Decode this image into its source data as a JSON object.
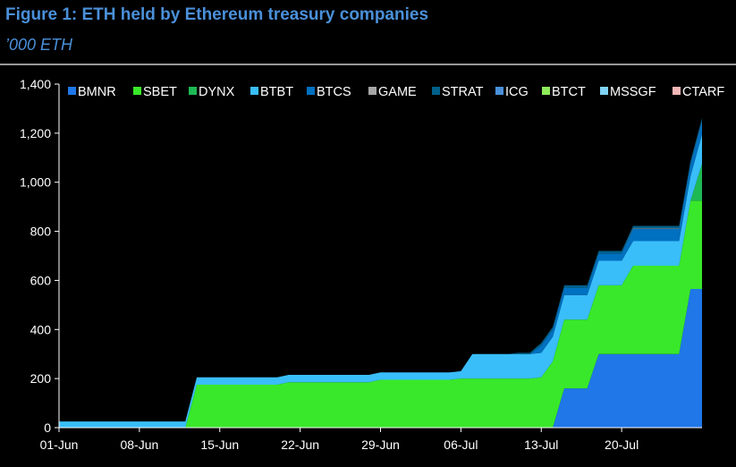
{
  "figure": {
    "title": "Figure 1: ETH held by Ethereum treasury companies",
    "subtitle": "’000 ETH"
  },
  "chart_data": {
    "type": "area",
    "stacked": true,
    "title": "Figure 1: ETH held by Ethereum treasury companies",
    "subtitle": "’000 ETH",
    "xlabel": "",
    "ylabel": "",
    "ylim": [
      0,
      1400
    ],
    "yticks": [
      0,
      200,
      400,
      600,
      800,
      1000,
      1200,
      1400
    ],
    "ytick_labels": [
      "0",
      "200",
      "400",
      "600",
      "800",
      "1,000",
      "1,200",
      "1,400"
    ],
    "xlim_days": [
      0,
      56
    ],
    "xticks": [
      {
        "day": 0,
        "label": "01-Jun"
      },
      {
        "day": 7,
        "label": "08-Jun"
      },
      {
        "day": 14,
        "label": "15-Jun"
      },
      {
        "day": 21,
        "label": "22-Jun"
      },
      {
        "day": 28,
        "label": "29-Jun"
      },
      {
        "day": 35,
        "label": "06-Jul"
      },
      {
        "day": 42,
        "label": "13-Jul"
      },
      {
        "day": 49,
        "label": "20-Jul"
      }
    ],
    "legend_position": "top",
    "grid": false,
    "x": [
      0,
      1,
      2,
      3,
      4,
      5,
      6,
      7,
      8,
      9,
      10,
      11,
      12,
      13,
      14,
      15,
      16,
      17,
      18,
      19,
      20,
      21,
      22,
      23,
      24,
      25,
      26,
      27,
      28,
      29,
      30,
      31,
      32,
      33,
      34,
      35,
      36,
      37,
      38,
      39,
      40,
      41,
      42,
      43,
      44,
      45,
      46,
      47,
      48,
      49,
      50,
      51,
      52,
      53,
      54,
      55,
      56
    ],
    "series": [
      {
        "name": "BMNR",
        "color": "#1F77E8",
        "values": [
          0,
          0,
          0,
          0,
          0,
          0,
          0,
          0,
          0,
          0,
          0,
          0,
          0,
          0,
          0,
          0,
          0,
          0,
          0,
          0,
          0,
          0,
          0,
          0,
          0,
          0,
          0,
          0,
          0,
          0,
          0,
          0,
          0,
          0,
          0,
          0,
          0,
          0,
          0,
          0,
          0,
          0,
          0,
          0,
          160,
          160,
          160,
          300,
          300,
          300,
          300,
          300,
          300,
          300,
          300,
          565,
          565
        ]
      },
      {
        "name": "SBET",
        "color": "#39E82A",
        "values": [
          0,
          0,
          0,
          0,
          0,
          0,
          0,
          0,
          0,
          0,
          0,
          0,
          175,
          175,
          175,
          175,
          175,
          175,
          175,
          175,
          185,
          185,
          185,
          185,
          185,
          185,
          185,
          185,
          195,
          195,
          195,
          195,
          195,
          195,
          195,
          200,
          200,
          200,
          200,
          200,
          200,
          200,
          205,
          270,
          280,
          280,
          280,
          280,
          280,
          280,
          360,
          360,
          360,
          360,
          360,
          360,
          360
        ]
      },
      {
        "name": "DYNX",
        "color": "#1DB954",
        "values": [
          0,
          0,
          0,
          0,
          0,
          0,
          0,
          0,
          0,
          0,
          0,
          0,
          0,
          0,
          0,
          0,
          0,
          0,
          0,
          0,
          0,
          0,
          0,
          0,
          0,
          0,
          0,
          0,
          0,
          0,
          0,
          0,
          0,
          0,
          0,
          0,
          0,
          0,
          0,
          0,
          0,
          0,
          0,
          0,
          0,
          0,
          0,
          0,
          0,
          0,
          0,
          0,
          0,
          0,
          0,
          0,
          150
        ]
      },
      {
        "name": "BTBT",
        "color": "#39BEFA",
        "values": [
          25,
          25,
          25,
          25,
          25,
          25,
          25,
          25,
          25,
          25,
          25,
          25,
          30,
          30,
          30,
          30,
          30,
          30,
          30,
          30,
          30,
          30,
          30,
          30,
          30,
          30,
          30,
          30,
          30,
          30,
          30,
          30,
          30,
          30,
          30,
          30,
          100,
          100,
          100,
          100,
          100,
          100,
          100,
          100,
          100,
          100,
          100,
          100,
          100,
          100,
          100,
          100,
          100,
          100,
          100,
          100,
          120
        ]
      },
      {
        "name": "BTCS",
        "color": "#0070C0",
        "values": [
          0,
          0,
          0,
          0,
          0,
          0,
          0,
          0,
          0,
          0,
          0,
          0,
          0,
          0,
          0,
          0,
          0,
          0,
          0,
          0,
          0,
          0,
          0,
          0,
          0,
          0,
          0,
          0,
          0,
          0,
          0,
          0,
          0,
          0,
          0,
          0,
          0,
          0,
          0,
          0,
          0,
          0,
          30,
          30,
          30,
          30,
          30,
          30,
          30,
          30,
          50,
          50,
          50,
          50,
          50,
          50,
          55
        ]
      },
      {
        "name": "GAME",
        "color": "#A6A6A6",
        "values": [
          0,
          0,
          0,
          0,
          0,
          0,
          0,
          0,
          0,
          0,
          0,
          0,
          0,
          0,
          0,
          0,
          0,
          0,
          0,
          0,
          0,
          0,
          0,
          0,
          0,
          0,
          0,
          0,
          0,
          0,
          0,
          0,
          0,
          0,
          0,
          0,
          0,
          0,
          0,
          0,
          0,
          0,
          0,
          0,
          0,
          0,
          0,
          0,
          0,
          0,
          2,
          2,
          2,
          2,
          2,
          2,
          2
        ]
      },
      {
        "name": "STRAT",
        "color": "#00608A",
        "values": [
          0,
          0,
          0,
          0,
          0,
          0,
          0,
          0,
          0,
          0,
          0,
          0,
          0,
          0,
          0,
          0,
          0,
          0,
          0,
          0,
          0,
          0,
          0,
          0,
          0,
          0,
          0,
          0,
          0,
          0,
          0,
          0,
          0,
          0,
          0,
          0,
          0,
          0,
          0,
          0,
          5,
          5,
          10,
          10,
          10,
          10,
          10,
          10,
          10,
          10,
          10,
          10,
          10,
          10,
          10,
          10,
          10
        ]
      },
      {
        "name": "ICG",
        "color": "#4A90D9",
        "values": [
          0,
          0,
          0,
          0,
          0,
          0,
          0,
          0,
          0,
          0,
          0,
          0,
          0,
          0,
          0,
          0,
          0,
          0,
          0,
          0,
          0,
          0,
          0,
          0,
          0,
          0,
          0,
          0,
          0,
          0,
          0,
          0,
          0,
          0,
          0,
          0,
          0,
          0,
          0,
          0,
          0,
          0,
          0,
          0,
          0,
          0,
          0,
          0,
          0,
          0,
          0,
          0,
          0,
          0,
          0,
          0,
          0
        ]
      },
      {
        "name": "BTCT",
        "color": "#8EEB5A",
        "values": [
          0,
          0,
          0,
          0,
          0,
          0,
          0,
          0,
          0,
          0,
          0,
          0,
          0,
          0,
          0,
          0,
          0,
          0,
          0,
          0,
          0,
          0,
          0,
          0,
          0,
          0,
          0,
          0,
          0,
          0,
          0,
          0,
          0,
          0,
          0,
          0,
          0,
          0,
          0,
          0,
          0,
          0,
          0,
          0,
          0,
          0,
          0,
          0,
          0,
          0,
          0,
          0,
          0,
          0,
          0,
          0,
          0
        ]
      },
      {
        "name": "MSSGF",
        "color": "#7FD3F5",
        "values": [
          0,
          0,
          0,
          0,
          0,
          0,
          0,
          0,
          0,
          0,
          0,
          0,
          0,
          0,
          0,
          0,
          0,
          0,
          0,
          0,
          0,
          0,
          0,
          0,
          0,
          0,
          0,
          0,
          0,
          0,
          0,
          0,
          0,
          0,
          0,
          0,
          0,
          0,
          0,
          0,
          0,
          0,
          0,
          0,
          0,
          0,
          0,
          0,
          0,
          0,
          0,
          0,
          0,
          0,
          0,
          0,
          0
        ]
      },
      {
        "name": "CTARF",
        "color": "#F4B6B6",
        "values": [
          0,
          0,
          0,
          0,
          0,
          0,
          0,
          0,
          0,
          0,
          0,
          0,
          0,
          0,
          0,
          0,
          0,
          0,
          0,
          0,
          0,
          0,
          0,
          0,
          0,
          0,
          0,
          0,
          0,
          0,
          0,
          0,
          0,
          0,
          0,
          0,
          0,
          0,
          0,
          0,
          0,
          0,
          0,
          0,
          0,
          0,
          0,
          0,
          0,
          0,
          0,
          0,
          0,
          0,
          0,
          0,
          0
        ]
      }
    ]
  }
}
